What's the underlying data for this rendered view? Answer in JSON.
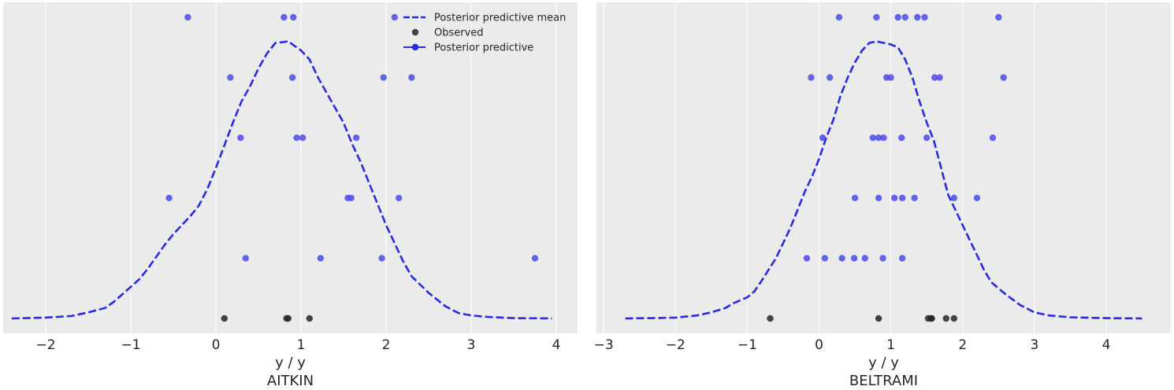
{
  "colors": {
    "background": "#ebebeb",
    "grid": "#ffffff",
    "mean_line": "#2a2ae6",
    "predictive_points": "#4b4bea",
    "observed_points": "#262626"
  },
  "legend": {
    "location": "top-right of first panel",
    "entries": [
      {
        "label": "Posterior predictive mean",
        "style": "dashed-line",
        "color": "#2a2ae6"
      },
      {
        "label": "Observed",
        "style": "dot",
        "color": "#262626"
      },
      {
        "label": "Posterior predictive",
        "style": "line-dot",
        "color": "#2a2ae6"
      }
    ]
  },
  "chart_data": [
    {
      "type": "scatter",
      "title": "AITKIN",
      "xlabel": "y / y",
      "ylabel": "",
      "xlim": [
        -2.5,
        4.25
      ],
      "ylim": [
        0,
        1.05
      ],
      "xticks": [
        -2,
        -1,
        0,
        1,
        2,
        3,
        4
      ],
      "xtick_labels": [
        "−2",
        "−1",
        "0",
        "1",
        "2",
        "3",
        "4"
      ],
      "grid": "vertical",
      "yticks_shown": false,
      "mean_curve": {
        "name": "Posterior predictive mean",
        "x": [
          -2.4,
          -2.0,
          -1.7,
          -1.5,
          -1.3,
          -1.2,
          -1.1,
          -1.0,
          -0.9,
          -0.8,
          -0.6,
          -0.5,
          -0.3,
          -0.2,
          -0.1,
          0.0,
          0.1,
          0.2,
          0.3,
          0.4,
          0.5,
          0.6,
          0.7,
          0.8,
          0.85,
          0.9,
          1.0,
          1.1,
          1.2,
          1.3,
          1.4,
          1.5,
          1.6,
          1.7,
          1.8,
          1.9,
          2.0,
          2.1,
          2.2,
          2.3,
          2.5,
          2.7,
          2.85,
          3.0,
          3.2,
          3.5,
          3.95
        ],
        "y": [
          0.0,
          0.003,
          0.008,
          0.02,
          0.035,
          0.055,
          0.08,
          0.105,
          0.13,
          0.165,
          0.245,
          0.28,
          0.34,
          0.375,
          0.43,
          0.5,
          0.575,
          0.65,
          0.72,
          0.77,
          0.83,
          0.88,
          0.915,
          0.918,
          0.92,
          0.91,
          0.89,
          0.86,
          0.8,
          0.75,
          0.7,
          0.65,
          0.58,
          0.52,
          0.45,
          0.38,
          0.31,
          0.25,
          0.19,
          0.14,
          0.085,
          0.04,
          0.018,
          0.01,
          0.005,
          0.001,
          0.0
        ],
        "style": "dashed"
      },
      "predictive_points": {
        "name": "Posterior predictive",
        "rows": [
          {
            "y": 0.2,
            "x": [
              0.35,
              1.23,
              1.95,
              3.75
            ]
          },
          {
            "y": 0.4,
            "x": [
              -0.55,
              1.55,
              1.59,
              2.15
            ]
          },
          {
            "y": 0.6,
            "x": [
              0.29,
              0.95,
              1.02,
              1.65
            ]
          },
          {
            "y": 0.8,
            "x": [
              0.17,
              0.9,
              1.97,
              2.3
            ]
          },
          {
            "y": 1.0,
            "x": [
              -0.33,
              0.8,
              0.91,
              2.1
            ]
          }
        ]
      },
      "observed_points": {
        "name": "Observed",
        "y": 0.0,
        "x": [
          0.1,
          0.83,
          0.85,
          1.1
        ]
      }
    },
    {
      "type": "scatter",
      "title": "BELTRAMI",
      "xlabel": "y / y",
      "ylabel": "",
      "xlim": [
        -3.1,
        4.9
      ],
      "ylim": [
        0,
        1.05
      ],
      "xticks": [
        -3,
        -2,
        -1,
        0,
        1,
        2,
        3,
        4
      ],
      "xtick_labels": [
        "−3",
        "−2",
        "−1",
        "0",
        "1",
        "2",
        "3",
        "4"
      ],
      "grid": "vertical",
      "yticks_shown": false,
      "mean_curve": {
        "name": "Posterior predictive mean",
        "x": [
          -2.7,
          -2.3,
          -2.0,
          -1.7,
          -1.5,
          -1.3,
          -1.2,
          -1.0,
          -0.9,
          -0.8,
          -0.6,
          -0.5,
          -0.4,
          -0.3,
          -0.2,
          -0.1,
          0.0,
          0.1,
          0.2,
          0.3,
          0.4,
          0.5,
          0.6,
          0.7,
          0.8,
          0.9,
          1.0,
          1.1,
          1.2,
          1.3,
          1.4,
          1.5,
          1.6,
          1.7,
          1.8,
          1.9,
          2.0,
          2.1,
          2.2,
          2.3,
          2.4,
          2.6,
          2.8,
          3.0,
          3.2,
          3.5,
          4.0,
          4.5
        ],
        "y": [
          0.0,
          0.001,
          0.003,
          0.01,
          0.02,
          0.035,
          0.05,
          0.07,
          0.09,
          0.125,
          0.2,
          0.25,
          0.3,
          0.36,
          0.42,
          0.47,
          0.53,
          0.6,
          0.66,
          0.74,
          0.8,
          0.85,
          0.89,
          0.915,
          0.92,
          0.915,
          0.91,
          0.9,
          0.86,
          0.8,
          0.72,
          0.65,
          0.59,
          0.5,
          0.41,
          0.36,
          0.31,
          0.26,
          0.21,
          0.16,
          0.12,
          0.08,
          0.045,
          0.02,
          0.01,
          0.004,
          0.001,
          0.0
        ],
        "style": "dashed"
      },
      "predictive_points": {
        "name": "Posterior predictive",
        "rows": [
          {
            "y": 0.2,
            "x": [
              -0.17,
              0.08,
              0.32,
              0.49,
              0.64,
              0.89,
              1.16
            ]
          },
          {
            "y": 0.4,
            "x": [
              0.5,
              0.83,
              1.05,
              1.16,
              1.33,
              1.88,
              2.2
            ]
          },
          {
            "y": 0.6,
            "x": [
              0.05,
              0.75,
              0.83,
              0.9,
              1.15,
              1.5,
              2.42
            ]
          },
          {
            "y": 0.8,
            "x": [
              -0.11,
              0.15,
              0.94,
              1.0,
              1.61,
              1.68,
              2.57
            ]
          },
          {
            "y": 1.0,
            "x": [
              0.28,
              0.8,
              1.1,
              1.2,
              1.37,
              1.47,
              2.5
            ]
          }
        ]
      },
      "observed_points": {
        "name": "Observed",
        "y": 0.0,
        "x": [
          -0.68,
          0.83,
          1.52,
          1.56,
          1.57,
          1.77,
          1.88
        ]
      }
    }
  ]
}
